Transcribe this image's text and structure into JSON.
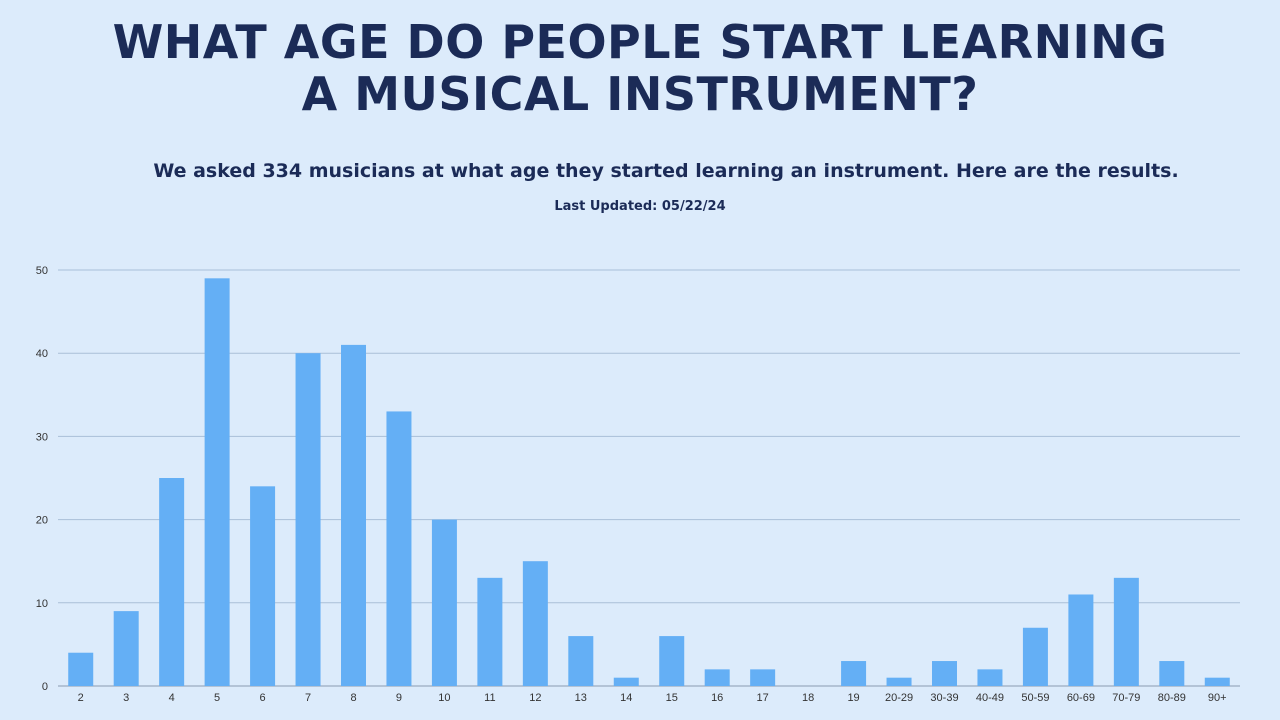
{
  "header": {
    "title_line1": "WHAT AGE DO PEOPLE START LEARNING",
    "title_line2": "A MUSICAL INSTRUMENT?",
    "subtitle": "We asked 334 musicians at what age they started learning an instrument. Here are the results.",
    "updated": "Last Updated: 05/22/24"
  },
  "colors": {
    "background": "#dcebfb",
    "bar": "#64aff5",
    "gridline": "#a9bfd8",
    "text": "#1b2b57"
  },
  "chart_data": {
    "type": "bar",
    "categories": [
      "2",
      "3",
      "4",
      "5",
      "6",
      "7",
      "8",
      "9",
      "10",
      "11",
      "12",
      "13",
      "14",
      "15",
      "16",
      "17",
      "18",
      "19",
      "20-29",
      "30-39",
      "40-49",
      "50-59",
      "60-69",
      "70-79",
      "80-89",
      "90+"
    ],
    "values": [
      4,
      9,
      25,
      49,
      24,
      40,
      41,
      33,
      20,
      13,
      15,
      6,
      1,
      6,
      2,
      2,
      0,
      3,
      1,
      3,
      2,
      7,
      11,
      13,
      3,
      1
    ],
    "ylim": [
      0,
      50
    ],
    "yticks": [
      0,
      10,
      20,
      30,
      40,
      50
    ],
    "grid": true,
    "legend": "none"
  }
}
